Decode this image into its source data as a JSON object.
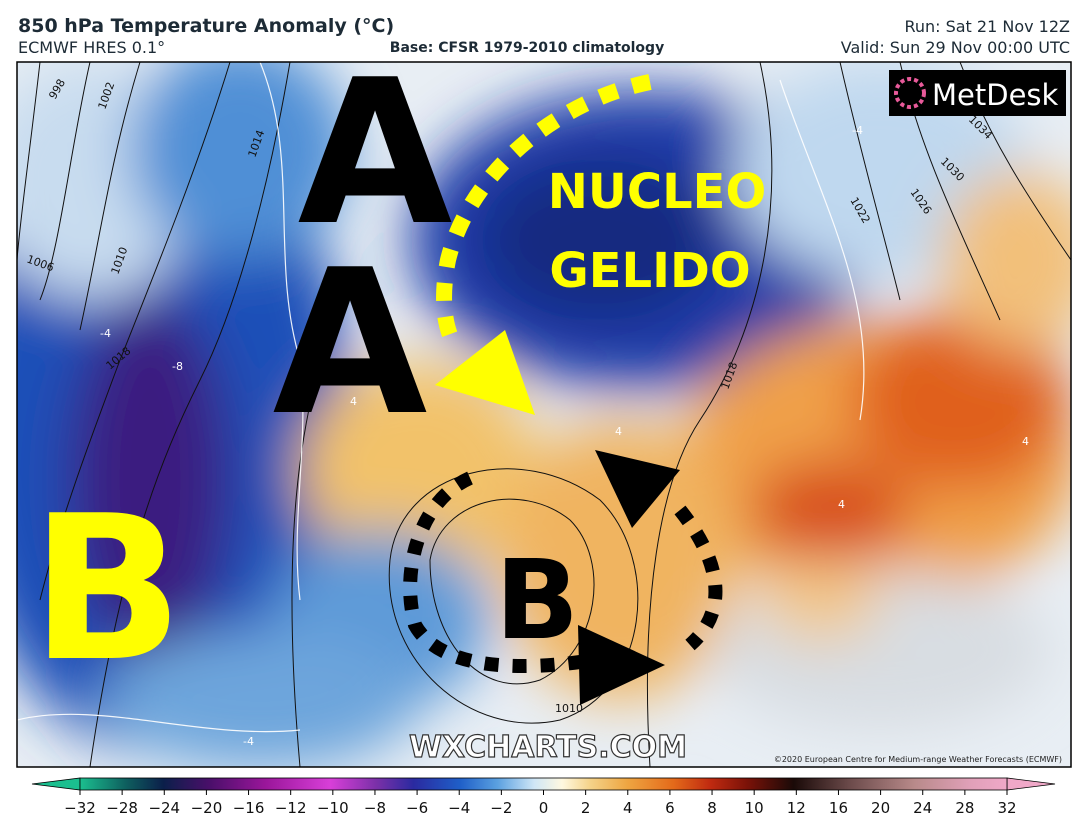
{
  "header": {
    "title": "850 hPa Temperature Anomaly (°C)",
    "model": "ECMWF HRES 0.1°",
    "base": "Base: CFSR 1979-2010 climatology",
    "run": "Run: Sat 21 Nov 12Z",
    "valid": "Valid: Sun 29 Nov 00:00 UTC"
  },
  "logo": "MetDesk",
  "annotations": {
    "high_north": "A",
    "high_south": "A",
    "cold_core_1": "NUCLEO",
    "cold_core_2": "GELIDO",
    "low_atlantic": "B",
    "low_mediterranean": "B"
  },
  "isobar_labels": [
    "998",
    "1002",
    "1014",
    "1006",
    "1010",
    "1018",
    "1022",
    "1026",
    "1030",
    "1034",
    "1018",
    "1010"
  ],
  "anomaly_labels": [
    "-4",
    "-8",
    "4",
    "4",
    "-4",
    "-4",
    "4",
    "4"
  ],
  "watermark": "WXCHARTS.COM",
  "copyright": "©2020 European Centre for Medium-range Weather Forecasts (ECMWF)",
  "colorbar": {
    "ticks": [
      {
        "value": -32,
        "label": "−32"
      },
      {
        "value": -28,
        "label": "−28"
      },
      {
        "value": -24,
        "label": "−24"
      },
      {
        "value": -20,
        "label": "−20"
      },
      {
        "value": -16,
        "label": "−16"
      },
      {
        "value": -12,
        "label": "−12"
      },
      {
        "value": -10,
        "label": "−10"
      },
      {
        "value": -8,
        "label": "−8"
      },
      {
        "value": -6,
        "label": "−6"
      },
      {
        "value": -4,
        "label": "−4"
      },
      {
        "value": -2,
        "label": "−2"
      },
      0,
      2,
      4,
      6,
      8,
      10,
      12,
      16,
      20,
      24,
      28,
      32
    ]
  }
}
